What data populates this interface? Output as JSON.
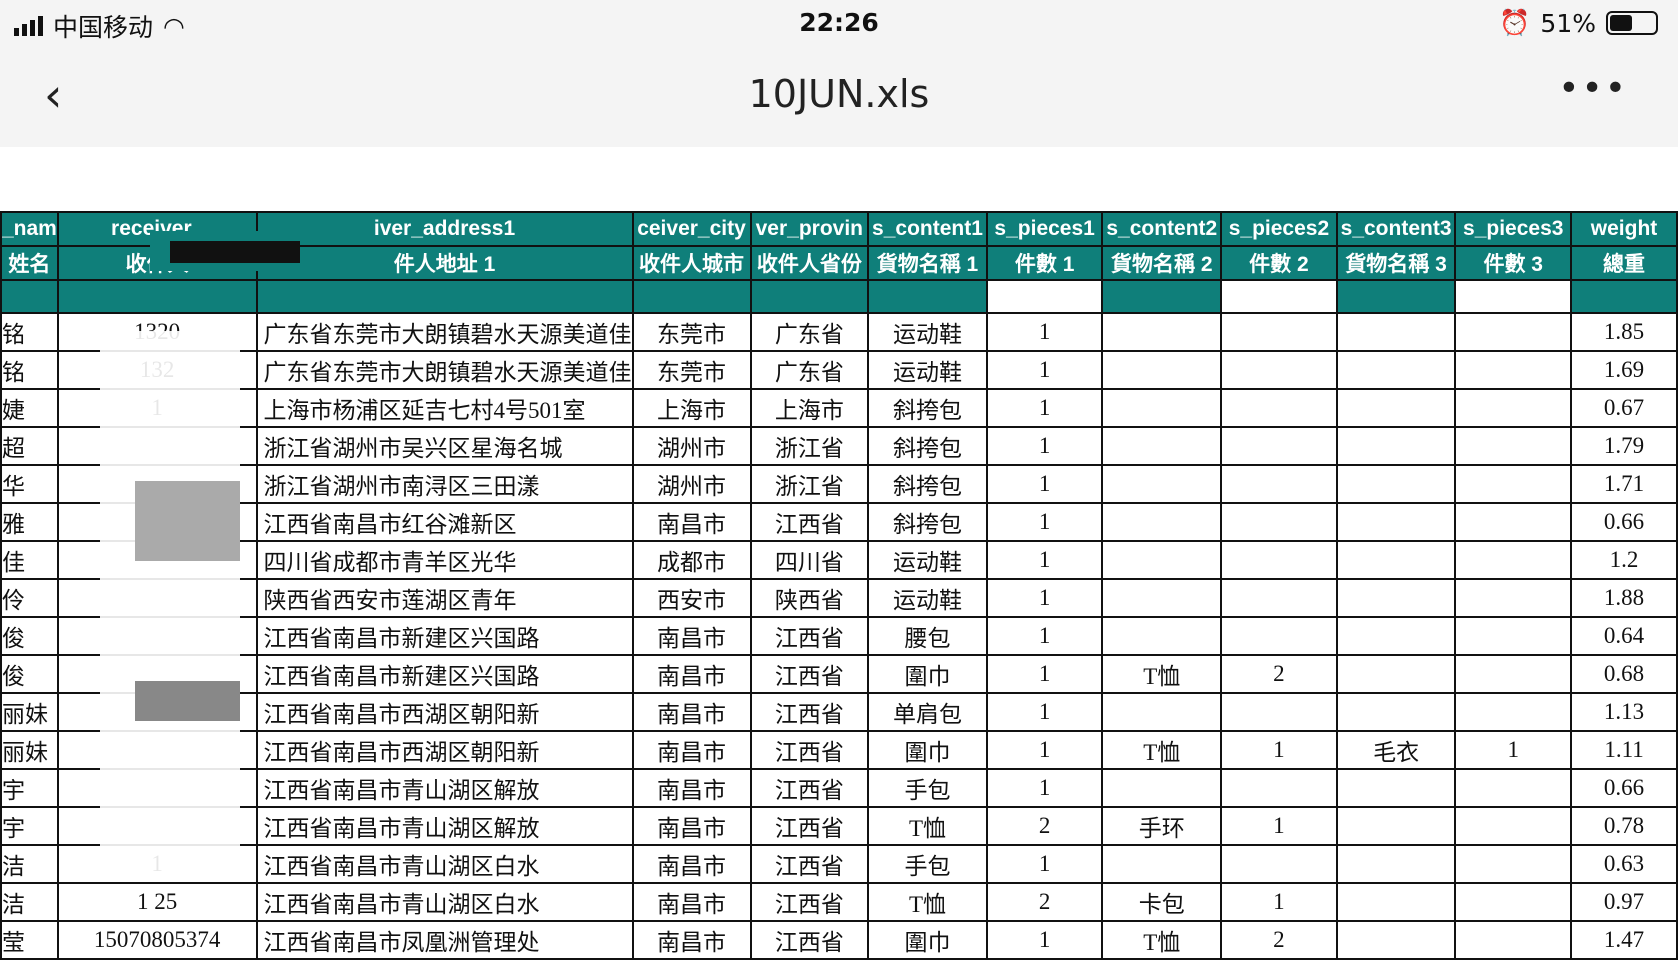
{
  "status": {
    "carrier": "中国移动",
    "time": "22:26",
    "battery": "51%",
    "icons": [
      "signal-icon",
      "wifi-icon",
      "alarm-icon",
      "battery-icon"
    ]
  },
  "nav": {
    "title": "10JUN.xls",
    "back_icon": "chevron-left-icon",
    "more_icon": "more-horizontal-icon"
  },
  "sheet": {
    "header1": [
      "_nam",
      "receiver_",
      "iver_address1",
      "ceiver_city",
      "ver_provin",
      "s_content1",
      "s_pieces1",
      "s_content2",
      "s_pieces2",
      "s_content3",
      "s_pieces3",
      "weight"
    ],
    "header2": [
      "姓名",
      "收件人",
      "件人地址 1",
      "收件人城市",
      "收件人省份",
      "貨物名稱 1",
      "件數 1",
      "貨物名稱 2",
      "件數 2",
      "貨物名稱 3",
      "件數 3",
      "總重"
    ],
    "rows": [
      [
        "铭",
        "1320",
        "广东省东莞市大朗镇碧水天源美道佳",
        "东莞市",
        "广东省",
        "运动鞋",
        "1",
        "",
        "",
        "",
        "",
        "1.85"
      ],
      [
        "铭",
        "132",
        "广东省东莞市大朗镇碧水天源美道佳",
        "东莞市",
        "广东省",
        "运动鞋",
        "1",
        "",
        "",
        "",
        "",
        "1.69"
      ],
      [
        "婕",
        "1",
        "上海市杨浦区延吉七村4号501室",
        "上海市",
        "上海市",
        "斜挎包",
        "1",
        "",
        "",
        "",
        "",
        "0.67"
      ],
      [
        "超",
        "",
        "浙江省湖州市吴兴区星海名城",
        "湖州市",
        "浙江省",
        "斜挎包",
        "1",
        "",
        "",
        "",
        "",
        "1.79"
      ],
      [
        "华",
        "",
        "浙江省湖州市南浔区三田漾",
        "湖州市",
        "浙江省",
        "斜挎包",
        "1",
        "",
        "",
        "",
        "",
        "1.71"
      ],
      [
        "雅",
        "",
        "江西省南昌市红谷滩新区",
        "南昌市",
        "江西省",
        "斜挎包",
        "1",
        "",
        "",
        "",
        "",
        "0.66"
      ],
      [
        "佳",
        "",
        "四川省成都市青羊区光华",
        "成都市",
        "四川省",
        "运动鞋",
        "1",
        "",
        "",
        "",
        "",
        "1.2"
      ],
      [
        "伶",
        "",
        "陕西省西安市莲湖区青年",
        "西安市",
        "陕西省",
        "运动鞋",
        "1",
        "",
        "",
        "",
        "",
        "1.88"
      ],
      [
        "俊",
        "",
        "江西省南昌市新建区兴国路",
        "南昌市",
        "江西省",
        "腰包",
        "1",
        "",
        "",
        "",
        "",
        "0.64"
      ],
      [
        "俊",
        "",
        "江西省南昌市新建区兴国路",
        "南昌市",
        "江西省",
        "圍巾",
        "1",
        "T恤",
        "2",
        "",
        "",
        "0.68"
      ],
      [
        "丽妹",
        "",
        "江西省南昌市西湖区朝阳新",
        "南昌市",
        "江西省",
        "单肩包",
        "1",
        "",
        "",
        "",
        "",
        "1.13"
      ],
      [
        "丽妹",
        "",
        "江西省南昌市西湖区朝阳新",
        "南昌市",
        "江西省",
        "圍巾",
        "1",
        "T恤",
        "1",
        "毛衣",
        "1",
        "1.11"
      ],
      [
        "宇",
        "",
        "江西省南昌市青山湖区解放",
        "南昌市",
        "江西省",
        "手包",
        "1",
        "",
        "",
        "",
        "",
        "0.66"
      ],
      [
        "宇",
        "",
        "江西省南昌市青山湖区解放",
        "南昌市",
        "江西省",
        "T恤",
        "2",
        "手环",
        "1",
        "",
        "",
        "0.78"
      ],
      [
        "洁",
        "1",
        "江西省南昌市青山湖区白水",
        "南昌市",
        "江西省",
        "手包",
        "1",
        "",
        "",
        "",
        "",
        "0.63"
      ],
      [
        "洁",
        "1 25",
        "江西省南昌市青山湖区白水",
        "南昌市",
        "江西省",
        "T恤",
        "2",
        "卡包",
        "1",
        "",
        "",
        "0.97"
      ],
      [
        "莹",
        "15070805374",
        "江西省南昌市凤凰洲管理处",
        "南昌市",
        "江西省",
        "圍巾",
        "1",
        "T恤",
        "2",
        "",
        "",
        "1.47"
      ]
    ]
  }
}
